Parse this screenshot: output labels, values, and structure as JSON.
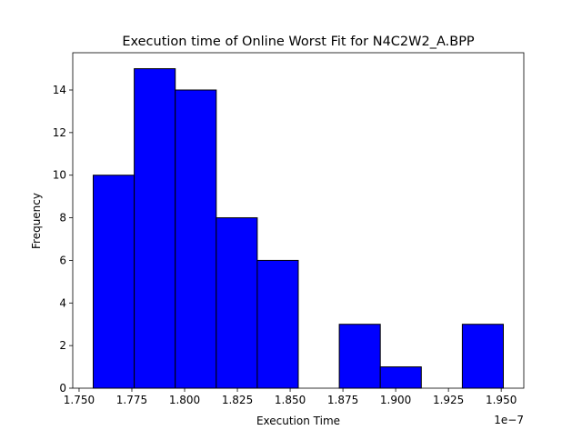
{
  "chart_data": {
    "type": "bar",
    "title": "Execution time of Online Worst Fit for N4C2W2_A.BPP",
    "xlabel": "Execution Time",
    "ylabel": "Frequency",
    "x_offset_text": "1e−7",
    "bin_edges": [
      1.7567,
      1.77613,
      1.79556,
      1.81499,
      1.83442,
      1.85385,
      1.87328,
      1.89271,
      1.91214,
      1.93157,
      1.951
    ],
    "values": [
      10,
      15,
      14,
      8,
      6,
      0,
      3,
      1,
      0,
      3
    ],
    "xlim": [
      1.747,
      1.9607
    ],
    "ylim": [
      0,
      15.75
    ],
    "xticks": [
      1.75,
      1.775,
      1.8,
      1.825,
      1.85,
      1.875,
      1.9,
      1.925,
      1.95
    ],
    "xtick_labels": [
      "1.750",
      "1.775",
      "1.800",
      "1.825",
      "1.850",
      "1.875",
      "1.900",
      "1.925",
      "1.950"
    ],
    "yticks": [
      0,
      2,
      4,
      6,
      8,
      10,
      12,
      14
    ],
    "ytick_labels": [
      "0",
      "2",
      "4",
      "6",
      "8",
      "10",
      "12",
      "14"
    ],
    "bar_color": "#0000ff",
    "edge_color": "#000000",
    "grid": false,
    "legend": "none"
  }
}
